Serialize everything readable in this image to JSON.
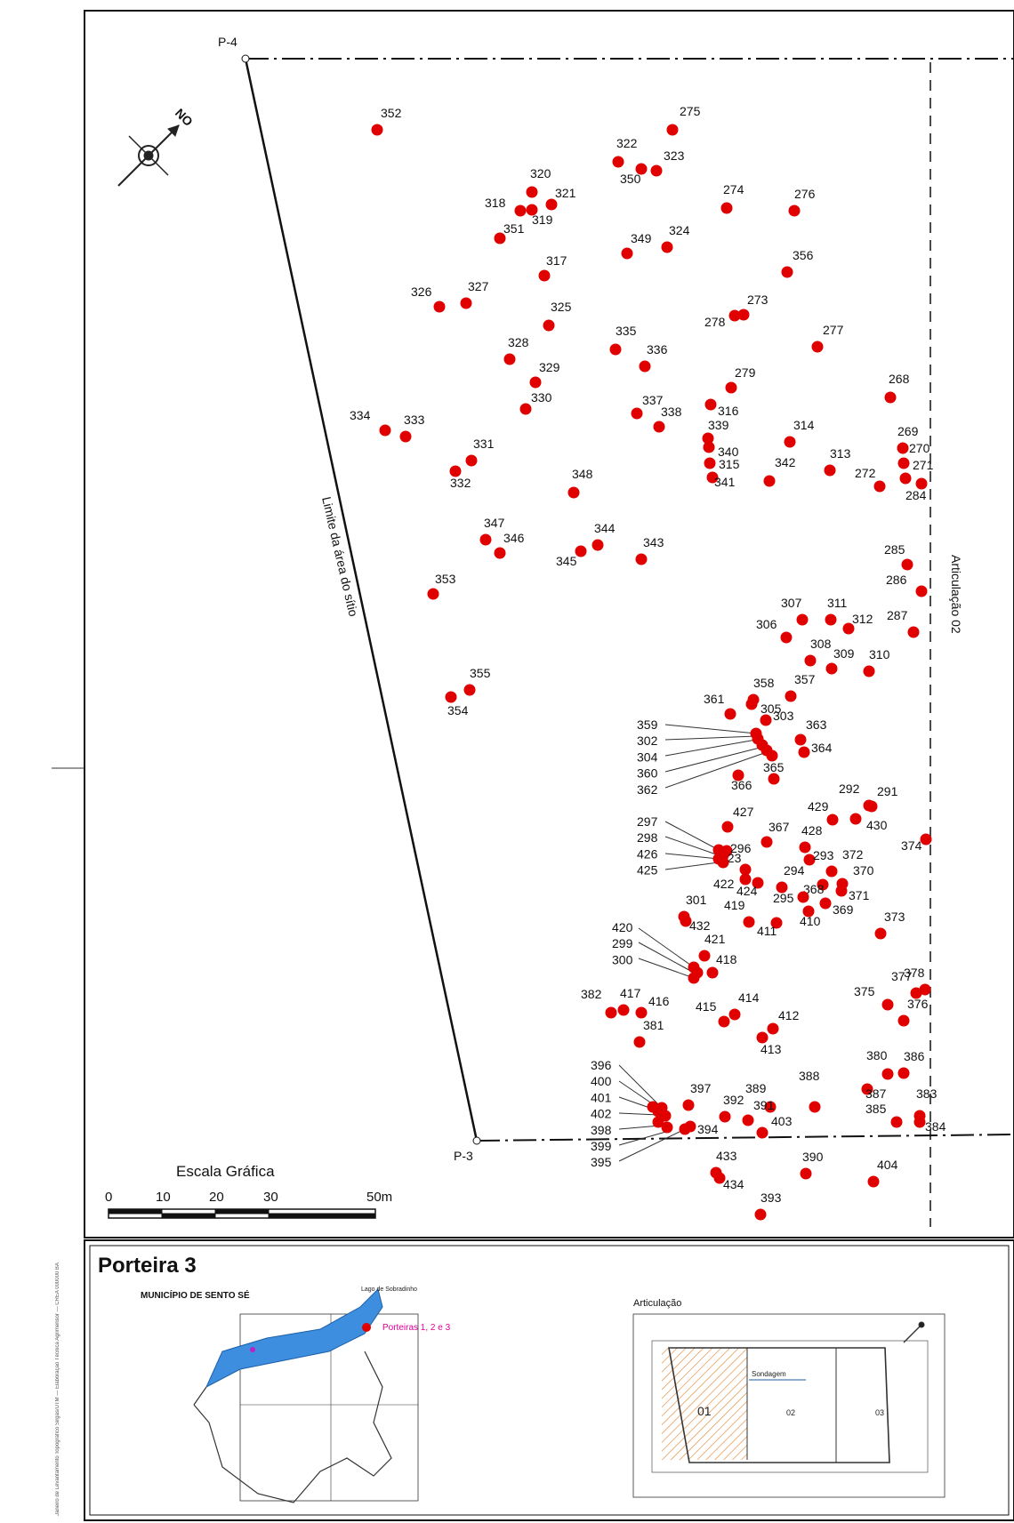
{
  "map": {
    "corner_labels": {
      "p4": "P-4",
      "p3": "P-3"
    },
    "boundary_label": "Limite da área do sítio",
    "articulation_label": "Articulação 02",
    "north_label": "NO",
    "point_color": "#e00000",
    "points": [
      {
        "id": "275"
      },
      {
        "id": "352"
      },
      {
        "id": "322"
      },
      {
        "id": "323"
      },
      {
        "id": "350"
      },
      {
        "id": "320"
      },
      {
        "id": "321"
      },
      {
        "id": "318"
      },
      {
        "id": "319"
      },
      {
        "id": "351"
      },
      {
        "id": "274"
      },
      {
        "id": "276"
      },
      {
        "id": "349"
      },
      {
        "id": "324"
      },
      {
        "id": "317"
      },
      {
        "id": "356"
      },
      {
        "id": "326"
      },
      {
        "id": "327"
      },
      {
        "id": "325"
      },
      {
        "id": "273"
      },
      {
        "id": "278"
      },
      {
        "id": "335"
      },
      {
        "id": "336"
      },
      {
        "id": "277"
      },
      {
        "id": "328"
      },
      {
        "id": "329"
      },
      {
        "id": "279"
      },
      {
        "id": "268"
      },
      {
        "id": "330"
      },
      {
        "id": "337"
      },
      {
        "id": "316"
      },
      {
        "id": "338"
      },
      {
        "id": "334"
      },
      {
        "id": "333"
      },
      {
        "id": "339"
      },
      {
        "id": "314"
      },
      {
        "id": "340"
      },
      {
        "id": "269"
      },
      {
        "id": "331"
      },
      {
        "id": "270"
      },
      {
        "id": "315"
      },
      {
        "id": "313"
      },
      {
        "id": "342"
      },
      {
        "id": "271"
      },
      {
        "id": "332"
      },
      {
        "id": "341"
      },
      {
        "id": "272"
      },
      {
        "id": "348"
      },
      {
        "id": "284"
      },
      {
        "id": "347"
      },
      {
        "id": "344"
      },
      {
        "id": "346"
      },
      {
        "id": "343"
      },
      {
        "id": "345"
      },
      {
        "id": "285"
      },
      {
        "id": "353"
      },
      {
        "id": "286"
      },
      {
        "id": "307"
      },
      {
        "id": "311"
      },
      {
        "id": "306"
      },
      {
        "id": "312"
      },
      {
        "id": "287"
      },
      {
        "id": "308"
      },
      {
        "id": "309"
      },
      {
        "id": "310"
      },
      {
        "id": "355"
      },
      {
        "id": "358"
      },
      {
        "id": "357"
      },
      {
        "id": "361"
      },
      {
        "id": "305"
      },
      {
        "id": "354"
      },
      {
        "id": "303"
      },
      {
        "id": "363"
      },
      {
        "id": "364"
      },
      {
        "id": "365"
      },
      {
        "id": "366"
      },
      {
        "id": "292"
      },
      {
        "id": "291"
      },
      {
        "id": "429"
      },
      {
        "id": "427"
      },
      {
        "id": "430"
      },
      {
        "id": "367"
      },
      {
        "id": "428"
      },
      {
        "id": "296"
      },
      {
        "id": "293"
      },
      {
        "id": "374"
      },
      {
        "id": "423"
      },
      {
        "id": "372"
      },
      {
        "id": "294"
      },
      {
        "id": "370"
      },
      {
        "id": "422"
      },
      {
        "id": "424"
      },
      {
        "id": "368"
      },
      {
        "id": "295"
      },
      {
        "id": "371"
      },
      {
        "id": "301"
      },
      {
        "id": "419"
      },
      {
        "id": "369"
      },
      {
        "id": "432"
      },
      {
        "id": "410"
      },
      {
        "id": "373"
      },
      {
        "id": "411"
      },
      {
        "id": "421"
      },
      {
        "id": "418"
      },
      {
        "id": "378"
      },
      {
        "id": "375"
      },
      {
        "id": "377"
      },
      {
        "id": "382"
      },
      {
        "id": "417"
      },
      {
        "id": "416"
      },
      {
        "id": "415"
      },
      {
        "id": "414"
      },
      {
        "id": "376"
      },
      {
        "id": "412"
      },
      {
        "id": "381"
      },
      {
        "id": "413"
      },
      {
        "id": "380"
      },
      {
        "id": "386"
      },
      {
        "id": "388"
      },
      {
        "id": "397"
      },
      {
        "id": "387"
      },
      {
        "id": "389"
      },
      {
        "id": "383"
      },
      {
        "id": "392"
      },
      {
        "id": "391"
      },
      {
        "id": "385"
      },
      {
        "id": "403"
      },
      {
        "id": "394"
      },
      {
        "id": "384"
      },
      {
        "id": "433"
      },
      {
        "id": "390"
      },
      {
        "id": "404"
      },
      {
        "id": "434"
      },
      {
        "id": "393"
      }
    ],
    "callout_groups": [
      {
        "labels": [
          "359",
          "302",
          "304",
          "360",
          "362"
        ]
      },
      {
        "labels": [
          "297",
          "298",
          "426",
          "425"
        ]
      },
      {
        "labels": [
          "420",
          "299",
          "300"
        ]
      },
      {
        "labels": [
          "396",
          "400",
          "401",
          "402",
          "398",
          "399",
          "395"
        ]
      }
    ],
    "scale": {
      "title": "Escala  Gráfica",
      "ticks": [
        "0",
        "10",
        "20",
        "30",
        "50m"
      ]
    }
  },
  "legend": {
    "title": "Porteira 3",
    "municipality": "MUNICÍPIO DE SENTO SÉ",
    "lake_label": "Lago de Sobradinho",
    "porteiras_label": "Porteiras 1, 2 e 3",
    "articulation": {
      "title": "Articulação",
      "sheets": [
        "01",
        "02",
        "03"
      ],
      "sondagem_label": "Sondagem"
    }
  },
  "credit": "Janeiro de Levantamento Topográfico Sirgas/UTM — Elaboração Técnica Agrimensor — CREA 000000 BA"
}
